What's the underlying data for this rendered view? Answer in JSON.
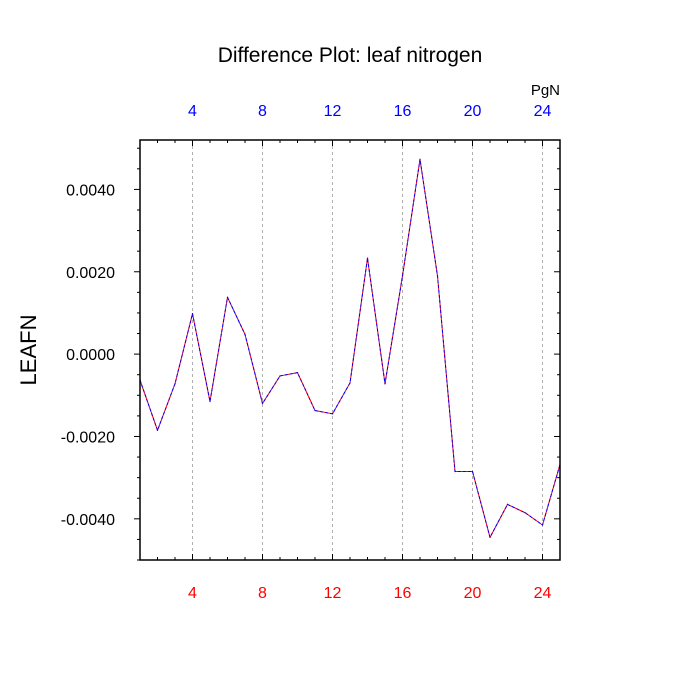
{
  "chart_data": {
    "type": "line",
    "title": "Difference Plot: leaf nitrogen",
    "units": "PgN",
    "ylabel": "LEAFN",
    "xlabel": "",
    "xlim": [
      1,
      25
    ],
    "ylim": [
      -0.005,
      0.0052
    ],
    "x_ticks": [
      4,
      8,
      12,
      16,
      20,
      24
    ],
    "x_tick_labels": [
      "4",
      "8",
      "12",
      "16",
      "20",
      "24"
    ],
    "y_ticks": [
      -0.004,
      -0.002,
      0.0,
      0.002,
      0.004
    ],
    "y_tick_labels": [
      "-0.0040",
      "-0.0020",
      "0.0000",
      "0.0020",
      "0.0040"
    ],
    "grid": "vertical dashed at x ticks",
    "colors": {
      "top_axis_labels": "#0000ff",
      "bottom_axis_labels": "#ff0000",
      "series_a": "#0000ff",
      "series_b": "#ff0000",
      "grid": "#b0b0b0",
      "frame": "#000000"
    },
    "x": [
      1,
      2,
      3,
      4,
      5,
      6,
      7,
      8,
      9,
      10,
      11,
      12,
      13,
      14,
      15,
      16,
      17,
      18,
      19,
      20,
      21,
      22,
      23,
      24,
      25
    ],
    "series": [
      {
        "values": [
          -0.00063,
          -0.00185,
          -0.00072,
          0.00098,
          -0.00115,
          0.00138,
          0.00048,
          -0.0012,
          -0.00053,
          -0.00045,
          -0.00137,
          -0.00145,
          -0.0007,
          0.00233,
          -0.00072,
          0.0019,
          0.00473,
          0.0019,
          -0.00285,
          -0.00285,
          -0.00445,
          -0.00365,
          -0.00385,
          -0.00415,
          -0.00268
        ]
      },
      {
        "values": [
          -0.00063,
          -0.00185,
          -0.00072,
          0.00098,
          -0.00115,
          0.00138,
          0.00048,
          -0.0012,
          -0.00053,
          -0.00045,
          -0.00137,
          -0.00145,
          -0.0007,
          0.00233,
          -0.00072,
          0.0019,
          0.00473,
          0.0019,
          -0.00285,
          -0.00285,
          -0.00445,
          -0.00365,
          -0.00385,
          -0.00415,
          -0.00268
        ]
      }
    ]
  }
}
